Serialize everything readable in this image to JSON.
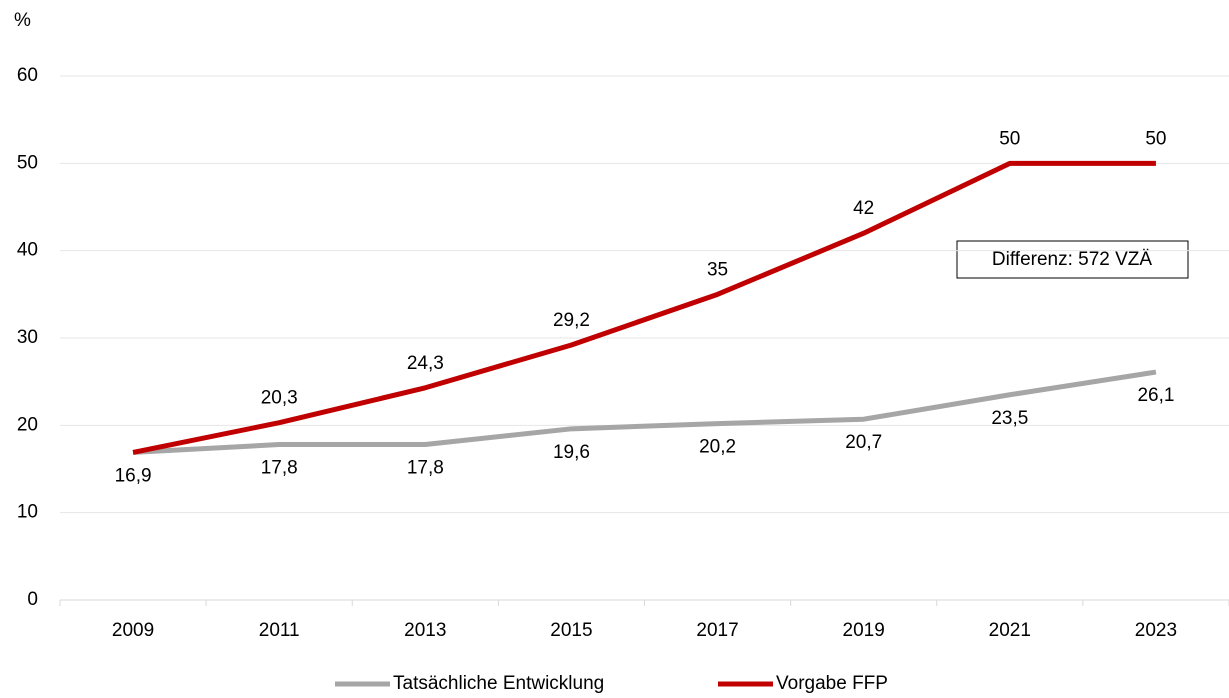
{
  "chart_data": {
    "type": "line",
    "y_unit_label": "%",
    "categories": [
      "2009",
      "2011",
      "2013",
      "2015",
      "2017",
      "2019",
      "2021",
      "2023"
    ],
    "series": [
      {
        "name": "Tatsächliche Entwicklung",
        "color": "#a6a6a6",
        "values": [
          16.9,
          17.8,
          17.8,
          19.6,
          20.2,
          20.7,
          23.5,
          26.1
        ],
        "value_labels": [
          "16,9",
          "17,8",
          "17,8",
          "19,6",
          "20,2",
          "20,7",
          "23,5",
          "26,1"
        ]
      },
      {
        "name": "Vorgabe FFP",
        "color": "#c00000",
        "values": [
          16.9,
          20.3,
          24.3,
          29.2,
          35,
          42,
          50,
          50
        ],
        "value_labels": [
          null,
          "20,3",
          "24,3",
          "29,2",
          "35",
          "42",
          "50",
          "50"
        ]
      }
    ],
    "ylim": [
      0,
      60
    ],
    "yticks": [
      0,
      10,
      20,
      30,
      40,
      50,
      60
    ],
    "grid": true,
    "annotation": "Differenz: 572 VZÄ",
    "legend": "bottom"
  }
}
